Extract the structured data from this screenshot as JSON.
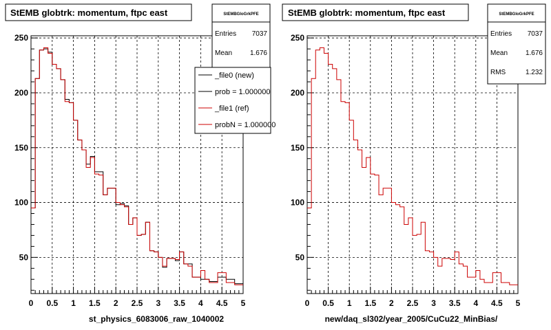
{
  "footer_text": "",
  "chart_data": [
    {
      "type": "histogram",
      "title": "StEMB globtrk: momentum, ftpc east",
      "xlabel": "st_physics_6083006_raw_1040002",
      "xlim": [
        0,
        5
      ],
      "ylim": [
        17,
        252
      ],
      "xticks": [
        "0",
        "0.5",
        "1",
        "1.5",
        "2",
        "2.5",
        "3",
        "3.5",
        "4",
        "4.5",
        "5"
      ],
      "yticks": [
        "50",
        "100",
        "150",
        "200",
        "250"
      ],
      "grid": true,
      "stats": {
        "header": "StEMBGloGrkPFE",
        "rows": [
          {
            "label": "Entries",
            "value": "7037"
          },
          {
            "label": "Mean",
            "value": "1.676"
          }
        ]
      },
      "legend": {
        "placement": "top-right",
        "entries": [
          {
            "label": "_file0 (new)",
            "color": "#000000"
          },
          {
            "label": "prob = 1.000000",
            "color": "#000000"
          },
          {
            "label": "_file1 (ref)",
            "color": "#cc0000"
          },
          {
            "label": "probN = 1.000000",
            "color": "#cc0000"
          }
        ]
      },
      "series": [
        {
          "name": "_file0 (new)",
          "color": "#000000",
          "values": [
            95,
            213,
            239,
            240,
            237,
            226,
            222,
            212,
            194,
            191,
            175,
            157,
            148,
            135,
            142,
            128,
            128,
            107,
            113,
            113,
            98,
            99,
            97,
            80,
            86,
            70,
            71,
            82,
            56,
            55,
            50,
            41,
            49,
            49,
            47,
            55,
            44,
            44,
            32,
            32,
            30,
            30,
            28,
            28,
            32,
            32,
            30,
            30,
            26,
            26
          ]
        },
        {
          "name": "_file1 (ref)",
          "color": "#cc0000",
          "values": [
            95,
            213,
            239,
            241,
            236,
            226,
            222,
            212,
            192,
            191,
            175,
            157,
            148,
            132,
            141,
            126,
            125,
            107,
            113,
            113,
            100,
            98,
            96,
            80,
            86,
            70,
            71,
            82,
            56,
            55,
            50,
            42,
            49,
            49,
            48,
            55,
            44,
            42,
            32,
            32,
            38,
            30,
            27,
            27,
            36,
            36,
            27,
            27,
            25,
            25
          ]
        }
      ]
    },
    {
      "type": "histogram",
      "title": "StEMB globtrk: momentum, ftpc east",
      "xlabel": "new/daq_sl302/year_2005/CuCu22_MinBias/",
      "xlim": [
        0,
        5
      ],
      "ylim": [
        17,
        252
      ],
      "xticks": [
        "0",
        "0.5",
        "1",
        "1.5",
        "2",
        "2.5",
        "3",
        "3.5",
        "4",
        "4.5",
        "5"
      ],
      "yticks": [
        "50",
        "100",
        "150",
        "200",
        "250"
      ],
      "grid": true,
      "stats": {
        "header": "StEMBGloGrkPFE",
        "rows": [
          {
            "label": "Entries",
            "value": "7037"
          },
          {
            "label": "Mean",
            "value": "1.676"
          },
          {
            "label": "RMS",
            "value": "1.232"
          }
        ]
      },
      "series": [
        {
          "name": "",
          "color": "#cc0000",
          "values": [
            95,
            213,
            239,
            241,
            236,
            226,
            222,
            212,
            192,
            191,
            175,
            157,
            148,
            132,
            141,
            126,
            125,
            107,
            113,
            113,
            100,
            98,
            96,
            80,
            86,
            70,
            71,
            82,
            56,
            55,
            50,
            42,
            49,
            49,
            48,
            55,
            44,
            42,
            32,
            32,
            38,
            30,
            27,
            27,
            36,
            36,
            27,
            27,
            25,
            25
          ]
        }
      ]
    }
  ]
}
